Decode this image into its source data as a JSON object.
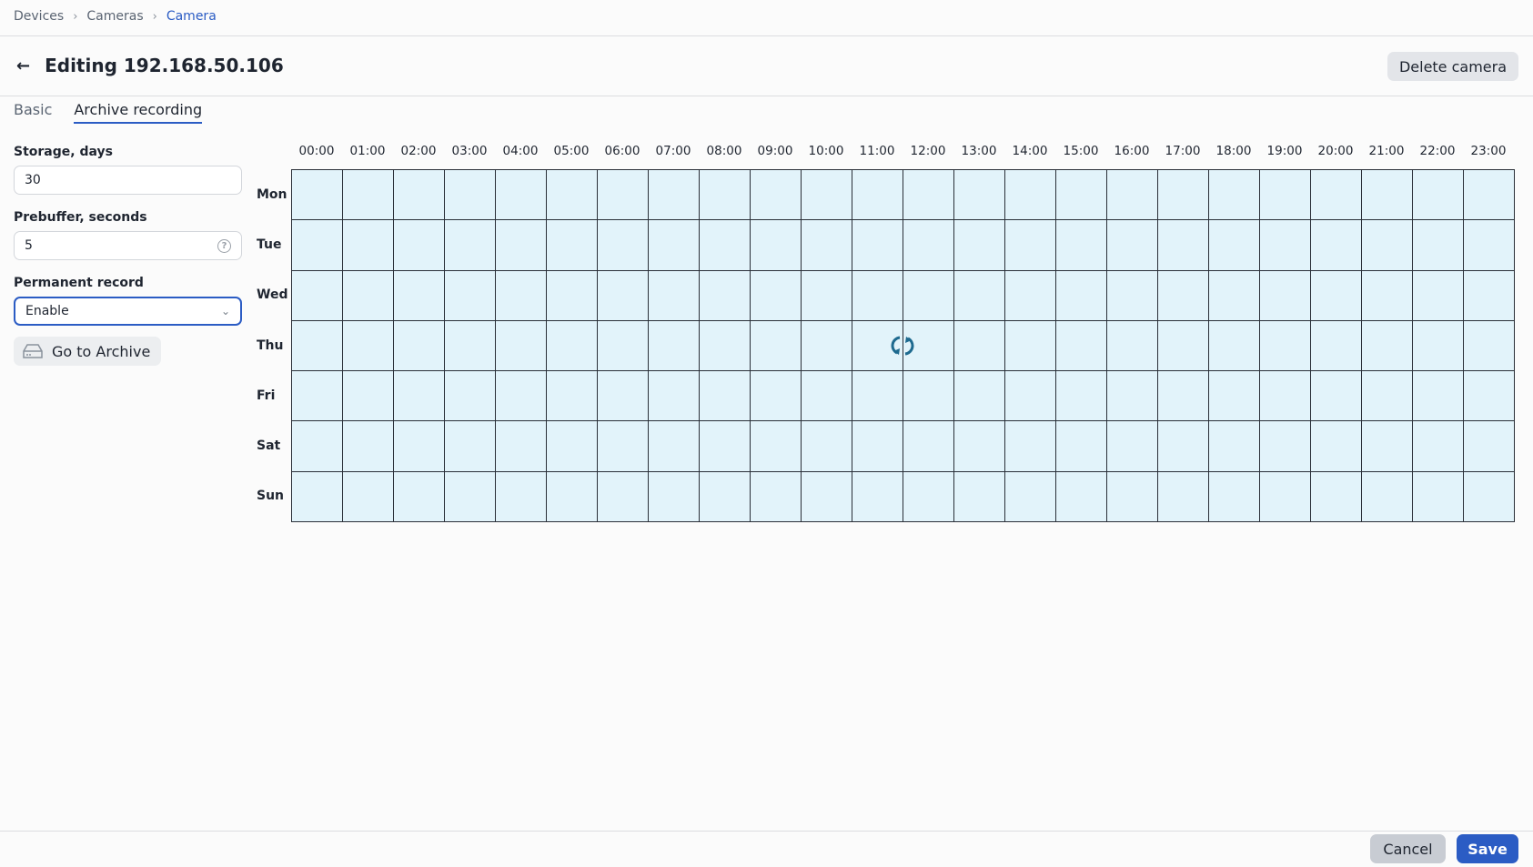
{
  "breadcrumb": [
    "Devices",
    "Cameras",
    "Camera"
  ],
  "header": {
    "title": "Editing 192.168.50.106",
    "delete_label": "Delete camera"
  },
  "tabs": [
    {
      "label": "Basic",
      "active": false
    },
    {
      "label": "Archive recording",
      "active": true
    }
  ],
  "form": {
    "storage_label": "Storage, days",
    "storage_value": "30",
    "prebuffer_label": "Prebuffer, seconds",
    "prebuffer_value": "5",
    "permanent_label": "Permanent record",
    "permanent_value": "Enable",
    "archive_label": "Go to Archive"
  },
  "schedule": {
    "hours": [
      "00:00",
      "01:00",
      "02:00",
      "03:00",
      "04:00",
      "05:00",
      "06:00",
      "07:00",
      "08:00",
      "09:00",
      "10:00",
      "11:00",
      "12:00",
      "13:00",
      "14:00",
      "15:00",
      "16:00",
      "17:00",
      "18:00",
      "19:00",
      "20:00",
      "21:00",
      "22:00",
      "23:00"
    ],
    "days": [
      "Mon",
      "Tue",
      "Wed",
      "Thu",
      "Fri",
      "Sat",
      "Sun"
    ],
    "cell_color": "#e2f3fa"
  },
  "footer": {
    "cancel_label": "Cancel",
    "save_label": "Save"
  },
  "colors": {
    "accent": "#2b5cc4",
    "loading_icon": "#1e6a8f"
  }
}
